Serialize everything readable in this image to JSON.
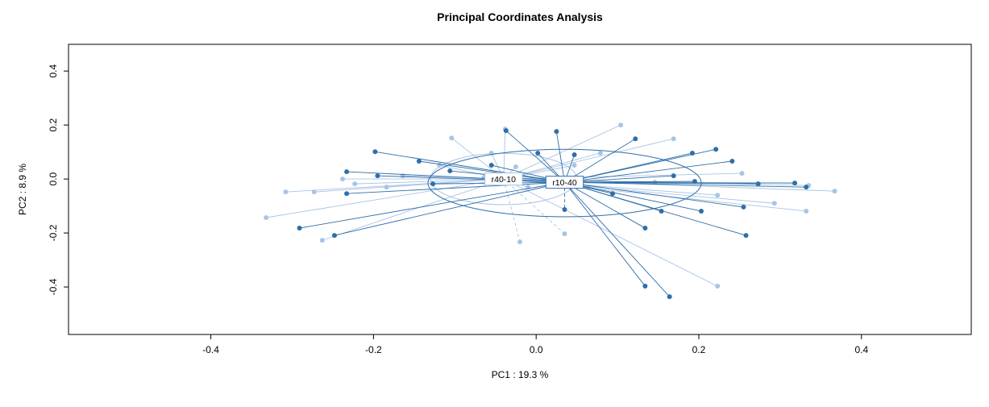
{
  "chart_data": {
    "type": "scatter",
    "title": "Principal Coordinates Analysis",
    "xlabel": "PC1 :  19.3 %",
    "ylabel": "PC2 :  8.9 %",
    "xlim": [
      -0.575,
      0.535
    ],
    "ylim": [
      -0.576,
      0.499
    ],
    "xticks": [
      -0.4,
      -0.2,
      0,
      0.2,
      0.4
    ],
    "yticks": [
      -0.4,
      -0.2,
      0,
      0.2,
      0.4
    ],
    "grid": false,
    "legend_position": "none",
    "plot_style": "ordination-spider-with-ellipses",
    "groups": [
      {
        "name": "r40-10",
        "color": "#a9c4e5",
        "centroid": [
          -0.04,
          0.0
        ],
        "ellipse": {
          "cx": -0.04,
          "cy": 0.0,
          "rx": 0.09,
          "ry": 0.095
        },
        "points": [
          [
            -0.104,
            0.152
          ],
          [
            -0.038,
            0.185
          ],
          [
            0.104,
            0.2
          ],
          [
            0.047,
            0.051
          ],
          [
            -0.025,
            0.045
          ],
          [
            -0.064,
            0.006
          ],
          [
            -0.01,
            -0.03
          ],
          [
            0.064,
            -0.03
          ],
          [
            0.146,
            -0.012
          ],
          [
            0.253,
            0.021
          ],
          [
            0.367,
            -0.045
          ],
          [
            0.332,
            -0.119
          ],
          [
            0.223,
            -0.06
          ],
          [
            -0.332,
            -0.143
          ],
          [
            -0.263,
            -0.227
          ],
          [
            -0.273,
            -0.048
          ],
          [
            -0.308,
            -0.048
          ],
          [
            -0.223,
            -0.018
          ],
          [
            -0.184,
            -0.03
          ],
          [
            0.223,
            -0.397
          ],
          [
            0.079,
            0.096
          ],
          [
            -0.119,
            0.051
          ],
          [
            -0.164,
            0.012
          ],
          [
            0.293,
            -0.09
          ],
          [
            -0.02,
            -0.233,
            "dashed"
          ],
          [
            0.035,
            -0.203,
            "dashed"
          ],
          [
            0.335,
            -0.024
          ],
          [
            -0.238,
            0.0
          ],
          [
            -0.055,
            0.096
          ],
          [
            0.169,
            0.149
          ]
        ]
      },
      {
        "name": "r10-40",
        "color": "#2f6fa8",
        "centroid": [
          0.035,
          -0.012
        ],
        "ellipse": {
          "cx": 0.035,
          "cy": -0.015,
          "rx": 0.168,
          "ry": 0.125
        },
        "points": [
          [
            -0.037,
            0.179
          ],
          [
            0.025,
            0.176
          ],
          [
            0.002,
            0.096
          ],
          [
            0.047,
            0.09
          ],
          [
            0.122,
            0.149
          ],
          [
            0.192,
            0.096
          ],
          [
            0.221,
            0.11
          ],
          [
            0.241,
            0.066
          ],
          [
            0.169,
            0.012
          ],
          [
            0.195,
            -0.009
          ],
          [
            0.273,
            -0.018
          ],
          [
            0.318,
            -0.015
          ],
          [
            0.332,
            -0.03
          ],
          [
            0.255,
            -0.104
          ],
          [
            0.203,
            -0.119
          ],
          [
            0.154,
            -0.119
          ],
          [
            0.134,
            -0.182
          ],
          [
            0.258,
            -0.209
          ],
          [
            0.134,
            -0.397
          ],
          [
            0.164,
            -0.436
          ],
          [
            -0.198,
            0.101
          ],
          [
            -0.144,
            0.066
          ],
          [
            -0.106,
            0.03
          ],
          [
            -0.233,
            0.027
          ],
          [
            -0.195,
            0.012
          ],
          [
            -0.233,
            -0.054
          ],
          [
            -0.291,
            -0.182
          ],
          [
            -0.248,
            -0.209
          ],
          [
            -0.055,
            0.051
          ],
          [
            -0.127,
            -0.018
          ],
          [
            0.035,
            -0.113,
            "dashed"
          ],
          [
            0.094,
            -0.054
          ]
        ]
      }
    ]
  }
}
